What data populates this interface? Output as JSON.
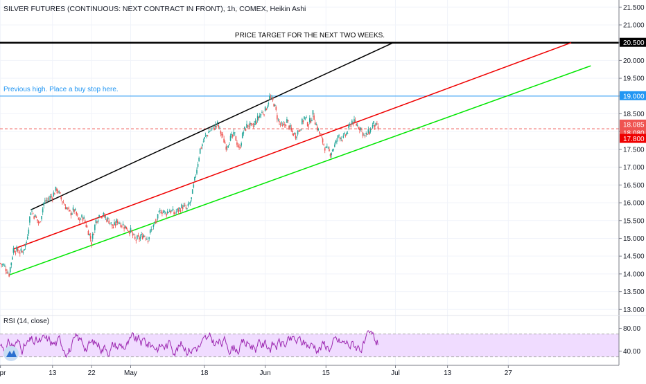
{
  "chart_data": {
    "type": "candlestick",
    "title": "SILVER FUTURES (CONTINUOUS: NEXT CONTRACT IN FRONT), 1h, COMEX, Heikin Ashi",
    "price_axis": {
      "ylim": [
        12.85,
        21.7
      ],
      "ticks": [
        "13.000",
        "13.500",
        "14.000",
        "14.500",
        "15.000",
        "15.500",
        "16.000",
        "16.500",
        "17.000",
        "17.500",
        "18.000",
        "18.500",
        "19.000",
        "19.500",
        "20.000",
        "20.500",
        "21.000",
        "21.500"
      ]
    },
    "price_labels": [
      {
        "value": 20.5,
        "text": "20.500",
        "color": "#000000"
      },
      {
        "value": 19.0,
        "text": "19.000",
        "color": "#2196f3"
      },
      {
        "value": 18.085,
        "text": "18.085",
        "color": "#ef5350"
      },
      {
        "value": 18.08,
        "text": "18.080",
        "color": "#ef5350"
      },
      {
        "value": 17.8,
        "text": "17.800",
        "color": "#ef0000"
      }
    ],
    "x_labels": [
      {
        "label": "Apr",
        "day": 0
      },
      {
        "label": "13",
        "day": 12
      },
      {
        "label": "22",
        "day": 21
      },
      {
        "label": "May",
        "day": 30
      },
      {
        "label": "18",
        "day": 47
      },
      {
        "label": "Jun",
        "day": 61
      },
      {
        "label": "15",
        "day": 75
      },
      {
        "label": "Jul",
        "day": 91
      },
      {
        "label": "13",
        "day": 103
      },
      {
        "label": "27",
        "day": 117
      }
    ],
    "x_range_days": [
      -0.1,
      142.5
    ],
    "series_close": [
      [
        0,
        14.3
      ],
      [
        1,
        14.2
      ],
      [
        2,
        14.0
      ],
      [
        3,
        14.7
      ],
      [
        5,
        14.6
      ],
      [
        6,
        14.9
      ],
      [
        7,
        15.8
      ],
      [
        8,
        15.6
      ],
      [
        9,
        15.4
      ],
      [
        10,
        16.0
      ],
      [
        11,
        16.1
      ],
      [
        12,
        16.2
      ],
      [
        13,
        16.4
      ],
      [
        14,
        16.1
      ],
      [
        15,
        15.9
      ],
      [
        16,
        15.7
      ],
      [
        17,
        15.8
      ],
      [
        18,
        15.5
      ],
      [
        19,
        15.6
      ],
      [
        20,
        15.3
      ],
      [
        21,
        14.9
      ],
      [
        22,
        15.5
      ],
      [
        23,
        15.7
      ],
      [
        24,
        15.6
      ],
      [
        25,
        15.5
      ],
      [
        26,
        15.3
      ],
      [
        27,
        15.5
      ],
      [
        28,
        15.4
      ],
      [
        29,
        15.3
      ],
      [
        30,
        15.2
      ],
      [
        31,
        14.95
      ],
      [
        32,
        15.0
      ],
      [
        33,
        15.1
      ],
      [
        34,
        15.0
      ],
      [
        35,
        15.3
      ],
      [
        36,
        15.5
      ],
      [
        37,
        15.8
      ],
      [
        38,
        15.7
      ],
      [
        39,
        15.8
      ],
      [
        40,
        15.7
      ],
      [
        41,
        15.8
      ],
      [
        42,
        15.9
      ],
      [
        43,
        15.8
      ],
      [
        44,
        16.1
      ],
      [
        45,
        16.8
      ],
      [
        46,
        17.5
      ],
      [
        47,
        17.8
      ],
      [
        48,
        18.0
      ],
      [
        49,
        18.1
      ],
      [
        50,
        18.2
      ],
      [
        51,
        17.9
      ],
      [
        52,
        17.6
      ],
      [
        53,
        17.8
      ],
      [
        54,
        17.9
      ],
      [
        55,
        17.5
      ],
      [
        56,
        18.0
      ],
      [
        57,
        18.2
      ],
      [
        58,
        18.1
      ],
      [
        59,
        18.3
      ],
      [
        60,
        18.5
      ],
      [
        61,
        18.6
      ],
      [
        62,
        18.95
      ],
      [
        63,
        18.8
      ],
      [
        64,
        18.3
      ],
      [
        65,
        18.1
      ],
      [
        66,
        18.3
      ],
      [
        67,
        18.0
      ],
      [
        68,
        17.9
      ],
      [
        69,
        18.1
      ],
      [
        70,
        18.4
      ],
      [
        71,
        18.2
      ],
      [
        72,
        18.5
      ],
      [
        73,
        18.1
      ],
      [
        74,
        17.8
      ],
      [
        75,
        17.5
      ],
      [
        76,
        17.4
      ],
      [
        77,
        17.6
      ],
      [
        78,
        17.9
      ],
      [
        79,
        17.8
      ],
      [
        80,
        18.0
      ],
      [
        81,
        18.3
      ],
      [
        82,
        18.2
      ],
      [
        83,
        18.1
      ],
      [
        84,
        17.85
      ],
      [
        85,
        18.0
      ],
      [
        86,
        18.2
      ],
      [
        87,
        18.08
      ]
    ],
    "trend_lines": [
      {
        "name": "black-channel-line",
        "color": "#000000",
        "from": [
          7,
          15.8
        ],
        "to": [
          90.5,
          20.5
        ]
      },
      {
        "name": "red-channel-line",
        "color": "#ef0000",
        "from": [
          3,
          14.7
        ],
        "to": [
          131.5,
          20.5
        ]
      },
      {
        "name": "green-channel-line",
        "color": "#00e600",
        "from": [
          2,
          13.97
        ],
        "to": [
          136,
          19.85
        ]
      }
    ],
    "horizontal_lines": [
      {
        "name": "target-line",
        "value": 20.5,
        "color": "#000000",
        "style": "solid"
      },
      {
        "name": "previous-high-line",
        "value": 19.0,
        "color": "#2196f3",
        "style": "solid"
      },
      {
        "name": "last-price-line",
        "value": 18.08,
        "color": "#ef5350",
        "style": "dashed"
      }
    ],
    "annotations": {
      "target": "PRICE TARGET FOR THE NEXT TWO WEEKS.",
      "previous_high": "Previous high. Place a buy stop here."
    },
    "rsi": {
      "label": "RSI (14, close)",
      "ticks": [
        "80.00",
        "40.00"
      ],
      "ylim": [
        15,
        100
      ],
      "band": [
        30,
        70
      ],
      "color": "#9c27b0",
      "band_color": "#f0dcff"
    }
  }
}
